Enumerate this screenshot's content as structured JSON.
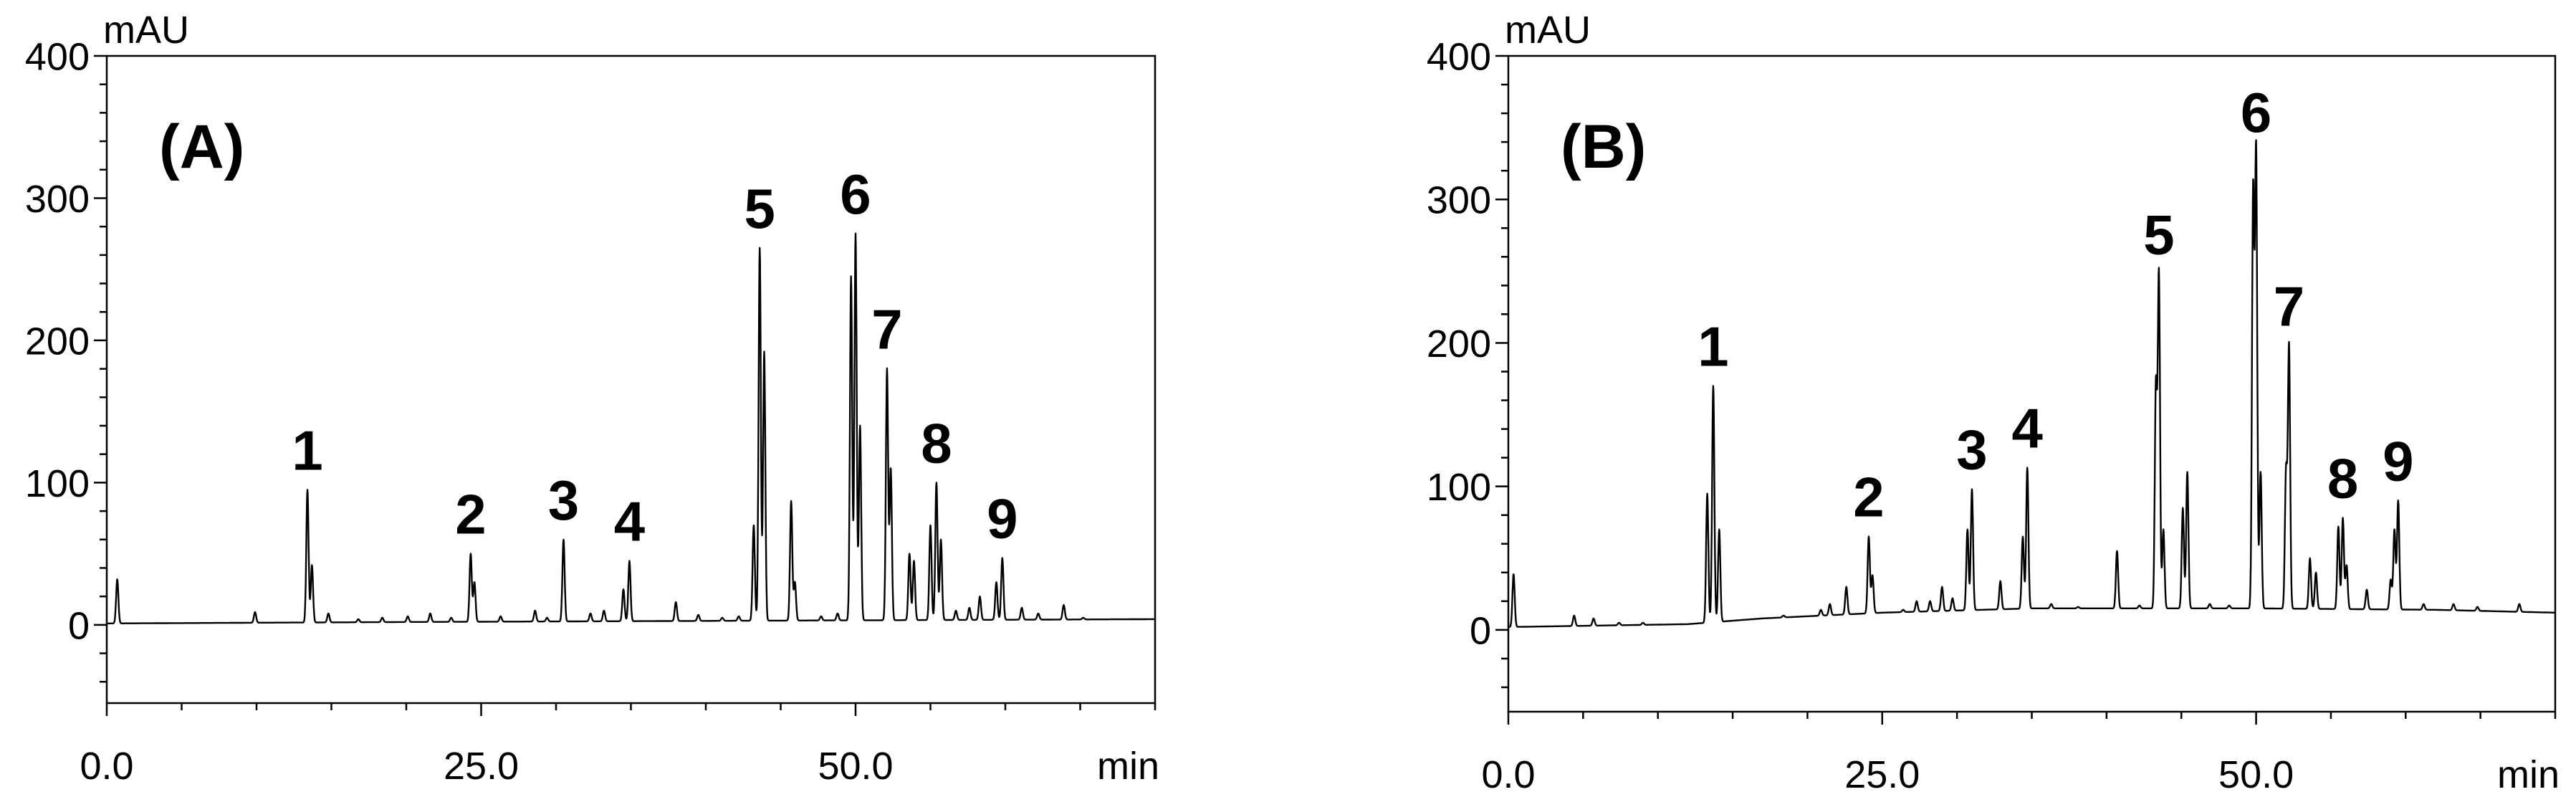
{
  "chart_data": [
    {
      "type": "line",
      "panel_label": "(A)",
      "xlabel": "min",
      "ylabel": "mAU",
      "xlim": [
        0,
        70
      ],
      "ylim": [
        -55,
        400
      ],
      "xticks": [
        0,
        25,
        50
      ],
      "xtick_labels": [
        "0.0",
        "25.0",
        "50.0"
      ],
      "yticks": [
        0,
        100,
        200,
        300,
        400
      ],
      "ytick_labels": [
        "0",
        "100",
        "200",
        "300",
        "400"
      ],
      "grid": false,
      "line_color": "#000000",
      "baseline": [
        [
          0,
          1
        ],
        [
          20,
          2
        ],
        [
          45,
          3
        ],
        [
          70,
          4
        ]
      ],
      "peaks": [
        {
          "rt": 0.7,
          "apex": 32
        },
        {
          "rt": 9.9,
          "apex": 9
        },
        {
          "rt": 13.4,
          "apex": 95,
          "label": "1"
        },
        {
          "rt": 13.7,
          "apex": 42
        },
        {
          "rt": 14.8,
          "apex": 8
        },
        {
          "rt": 16.8,
          "apex": 4
        },
        {
          "rt": 18.4,
          "apex": 5
        },
        {
          "rt": 20.1,
          "apex": 6
        },
        {
          "rt": 21.6,
          "apex": 8
        },
        {
          "rt": 23.0,
          "apex": 5
        },
        {
          "rt": 24.3,
          "apex": 50,
          "label": "2"
        },
        {
          "rt": 24.55,
          "apex": 30
        },
        {
          "rt": 26.3,
          "apex": 6
        },
        {
          "rt": 28.6,
          "apex": 10
        },
        {
          "rt": 29.4,
          "apex": 5
        },
        {
          "rt": 30.5,
          "apex": 60,
          "label": "3"
        },
        {
          "rt": 32.3,
          "apex": 8
        },
        {
          "rt": 33.2,
          "apex": 10
        },
        {
          "rt": 34.5,
          "apex": 25
        },
        {
          "rt": 34.9,
          "apex": 45,
          "label": "4"
        },
        {
          "rt": 38.0,
          "apex": 16
        },
        {
          "rt": 39.5,
          "apex": 7
        },
        {
          "rt": 41.1,
          "apex": 5
        },
        {
          "rt": 42.2,
          "apex": 6
        },
        {
          "rt": 43.2,
          "apex": 70
        },
        {
          "rt": 43.6,
          "apex": 265,
          "label": "5"
        },
        {
          "rt": 43.9,
          "apex": 192
        },
        {
          "rt": 45.7,
          "apex": 87
        },
        {
          "rt": 45.95,
          "apex": 30
        },
        {
          "rt": 47.7,
          "apex": 6
        },
        {
          "rt": 48.8,
          "apex": 8
        },
        {
          "rt": 49.7,
          "apex": 245
        },
        {
          "rt": 50.0,
          "apex": 275,
          "label": "6"
        },
        {
          "rt": 50.3,
          "apex": 140
        },
        {
          "rt": 52.1,
          "apex": 180,
          "label": "7"
        },
        {
          "rt": 52.35,
          "apex": 110
        },
        {
          "rt": 53.6,
          "apex": 50
        },
        {
          "rt": 53.9,
          "apex": 45
        },
        {
          "rt": 55.0,
          "apex": 70
        },
        {
          "rt": 55.4,
          "apex": 100,
          "label": "8"
        },
        {
          "rt": 55.7,
          "apex": 60
        },
        {
          "rt": 56.7,
          "apex": 10
        },
        {
          "rt": 57.6,
          "apex": 12
        },
        {
          "rt": 58.3,
          "apex": 20
        },
        {
          "rt": 59.4,
          "apex": 30
        },
        {
          "rt": 59.8,
          "apex": 47,
          "label": "9"
        },
        {
          "rt": 61.1,
          "apex": 12
        },
        {
          "rt": 62.2,
          "apex": 8
        },
        {
          "rt": 63.9,
          "apex": 14
        },
        {
          "rt": 65.2,
          "apex": 5
        }
      ]
    },
    {
      "type": "line",
      "panel_label": "(B)",
      "xlabel": "min",
      "ylabel": "mAU",
      "xlim": [
        0,
        70
      ],
      "ylim": [
        -57,
        400
      ],
      "xticks": [
        0,
        25,
        50
      ],
      "xtick_labels": [
        "0.0",
        "25.0",
        "50.0"
      ],
      "yticks": [
        0,
        100,
        200,
        300,
        400
      ],
      "ytick_labels": [
        "0",
        "100",
        "200",
        "300",
        "400"
      ],
      "grid": false,
      "line_color": "#000000",
      "baseline": [
        [
          0,
          2
        ],
        [
          12,
          4
        ],
        [
          17,
          8
        ],
        [
          25,
          12
        ],
        [
          35,
          15
        ],
        [
          50,
          15
        ],
        [
          62,
          14
        ],
        [
          70,
          12
        ]
      ],
      "peaks": [
        {
          "rt": 0.35,
          "apex": 39
        },
        {
          "rt": 4.4,
          "apex": 10
        },
        {
          "rt": 5.7,
          "apex": 8
        },
        {
          "rt": 7.4,
          "apex": 5
        },
        {
          "rt": 9.0,
          "apex": 5
        },
        {
          "rt": 13.3,
          "apex": 95
        },
        {
          "rt": 13.7,
          "apex": 170,
          "label": "1"
        },
        {
          "rt": 14.1,
          "apex": 70
        },
        {
          "rt": 18.4,
          "apex": 10
        },
        {
          "rt": 20.9,
          "apex": 14
        },
        {
          "rt": 21.5,
          "apex": 18
        },
        {
          "rt": 22.6,
          "apex": 30
        },
        {
          "rt": 24.1,
          "apex": 65,
          "label": "2"
        },
        {
          "rt": 24.35,
          "apex": 38
        },
        {
          "rt": 26.4,
          "apex": 14
        },
        {
          "rt": 27.3,
          "apex": 20
        },
        {
          "rt": 28.2,
          "apex": 20
        },
        {
          "rt": 29.0,
          "apex": 30
        },
        {
          "rt": 29.7,
          "apex": 22
        },
        {
          "rt": 30.7,
          "apex": 70
        },
        {
          "rt": 31.0,
          "apex": 98,
          "label": "3"
        },
        {
          "rt": 32.9,
          "apex": 34
        },
        {
          "rt": 34.4,
          "apex": 65
        },
        {
          "rt": 34.7,
          "apex": 113,
          "label": "4"
        },
        {
          "rt": 36.3,
          "apex": 18
        },
        {
          "rt": 38.1,
          "apex": 16
        },
        {
          "rt": 39.2,
          "apex": 15
        },
        {
          "rt": 40.7,
          "apex": 55
        },
        {
          "rt": 42.2,
          "apex": 17
        },
        {
          "rt": 43.3,
          "apex": 170
        },
        {
          "rt": 43.5,
          "apex": 248,
          "label": "5"
        },
        {
          "rt": 43.8,
          "apex": 70
        },
        {
          "rt": 45.1,
          "apex": 85
        },
        {
          "rt": 45.4,
          "apex": 110
        },
        {
          "rt": 46.9,
          "apex": 18
        },
        {
          "rt": 48.2,
          "apex": 17
        },
        {
          "rt": 49.8,
          "apex": 305
        },
        {
          "rt": 50.0,
          "apex": 333,
          "label": "6"
        },
        {
          "rt": 50.3,
          "apex": 110
        },
        {
          "rt": 52.0,
          "apex": 110
        },
        {
          "rt": 52.2,
          "apex": 198,
          "label": "7"
        },
        {
          "rt": 53.6,
          "apex": 50
        },
        {
          "rt": 54.0,
          "apex": 40
        },
        {
          "rt": 55.5,
          "apex": 72
        },
        {
          "rt": 55.8,
          "apex": 78,
          "label": "8"
        },
        {
          "rt": 56.05,
          "apex": 45
        },
        {
          "rt": 57.4,
          "apex": 28
        },
        {
          "rt": 59.0,
          "apex": 35
        },
        {
          "rt": 59.25,
          "apex": 70
        },
        {
          "rt": 59.5,
          "apex": 90,
          "label": "9"
        },
        {
          "rt": 61.2,
          "apex": 18
        },
        {
          "rt": 63.2,
          "apex": 18
        },
        {
          "rt": 64.8,
          "apex": 16
        },
        {
          "rt": 67.6,
          "apex": 18
        }
      ]
    }
  ]
}
